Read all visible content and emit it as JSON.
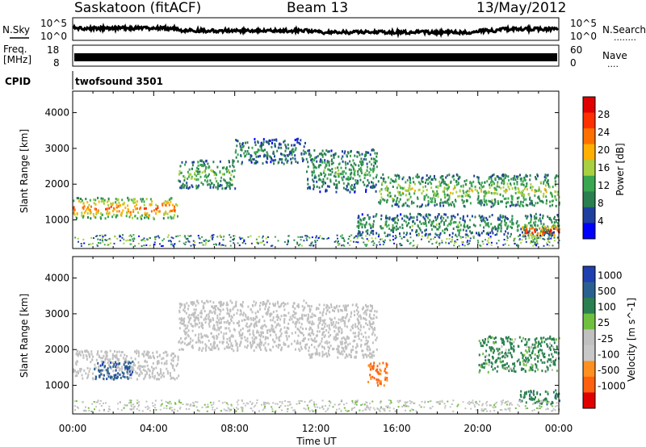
{
  "header": {
    "station": "Saskatoon (fitACF)",
    "beam": "Beam 13",
    "date": "13/May/2012"
  },
  "nsky_panel": {
    "left_label": "N.Sky",
    "right_label": "N.Search",
    "right_dots": "........",
    "ticks_left": [
      "10^5",
      "10^0"
    ],
    "ticks_right": [
      "10^5",
      "10^0"
    ]
  },
  "freq_panel": {
    "label_line1": "Freq.",
    "label_line2": "[MHz]",
    "right_label": "Nave",
    "right_dots": "....",
    "ticks_left": [
      "18",
      "8"
    ],
    "ticks_right": [
      "60",
      "0"
    ]
  },
  "cpid": {
    "label": "CPID",
    "value": "twofsound 3501"
  },
  "colors": {
    "power_scale": [
      "#0000ff",
      "#2040a0",
      "#2a7f50",
      "#3aa650",
      "#a8d040",
      "#ffb000",
      "#ff7000",
      "#ff3000",
      "#e00000"
    ],
    "velocity_scale": [
      "#2040b0",
      "#2a6090",
      "#2a8050",
      "#70c040",
      "#c0c0c0",
      "#c8c8c8",
      "#ff9020",
      "#ff6010",
      "#e00000"
    ]
  },
  "chart_data": [
    {
      "type": "heatmap",
      "title": "",
      "xlabel": "",
      "ylabel": "Slant Range [km]",
      "x_ticks": [
        "00:00",
        "04:00",
        "08:00",
        "12:00",
        "16:00",
        "20:00",
        "00:00"
      ],
      "y_ticks": [
        1000,
        2000,
        3000,
        4000
      ],
      "ylim": [
        200,
        4600
      ],
      "xlim_hours": [
        0,
        24
      ],
      "colorbar": {
        "label": "Power [dB]",
        "ticks": [
          4,
          8,
          12,
          16,
          20,
          24,
          28
        ],
        "range": [
          0,
          32
        ]
      },
      "echo_bands": [
        {
          "start_hr": 0.0,
          "end_hr": 5.2,
          "range_km": [
            1050,
            1650
          ],
          "power_db": 22
        },
        {
          "start_hr": 5.2,
          "end_hr": 8.0,
          "range_km": [
            1900,
            2700
          ],
          "power_db": 12
        },
        {
          "start_hr": 8.0,
          "end_hr": 11.5,
          "range_km": [
            2600,
            3300
          ],
          "power_db": 8
        },
        {
          "start_hr": 11.5,
          "end_hr": 15.0,
          "range_km": [
            1800,
            3000
          ],
          "power_db": 10
        },
        {
          "start_hr": 15.0,
          "end_hr": 24.0,
          "range_km": [
            1400,
            2300
          ],
          "power_db": 14
        },
        {
          "start_hr": 14.0,
          "end_hr": 24.0,
          "range_km": [
            600,
            1200
          ],
          "power_db": 10
        },
        {
          "start_hr": 22.0,
          "end_hr": 24.0,
          "range_km": [
            500,
            900
          ],
          "power_db": 26
        }
      ]
    },
    {
      "type": "heatmap",
      "title": "",
      "xlabel": "Time UT",
      "ylabel": "Slant Range [km]",
      "x_ticks": [
        "00:00",
        "04:00",
        "08:00",
        "12:00",
        "16:00",
        "20:00",
        "00:00"
      ],
      "y_ticks": [
        1000,
        2000,
        3000,
        4000
      ],
      "ylim": [
        200,
        4600
      ],
      "xlim_hours": [
        0,
        24
      ],
      "colorbar": {
        "label": "Velocity [m s^-1]",
        "ticks": [
          "1000",
          "500",
          "100",
          "25",
          "-25",
          "-100",
          "-500",
          "-1000"
        ]
      },
      "echo_bands": [
        {
          "start_hr": 0.0,
          "end_hr": 5.2,
          "range_km": [
            1200,
            2000
          ],
          "velocity": 0
        },
        {
          "start_hr": 1.0,
          "end_hr": 3.0,
          "range_km": [
            1200,
            1700
          ],
          "velocity": 600
        },
        {
          "start_hr": 5.2,
          "end_hr": 11.5,
          "range_km": [
            2000,
            3400
          ],
          "velocity": 0
        },
        {
          "start_hr": 11.5,
          "end_hr": 15.0,
          "range_km": [
            1800,
            3300
          ],
          "velocity": 0
        },
        {
          "start_hr": 14.5,
          "end_hr": 15.5,
          "range_km": [
            1000,
            1700
          ],
          "velocity": -300
        },
        {
          "start_hr": 20.0,
          "end_hr": 24.0,
          "range_km": [
            1400,
            2400
          ],
          "velocity": 150
        },
        {
          "start_hr": 22.0,
          "end_hr": 24.0,
          "range_km": [
            500,
            900
          ],
          "velocity": 200
        }
      ]
    }
  ]
}
